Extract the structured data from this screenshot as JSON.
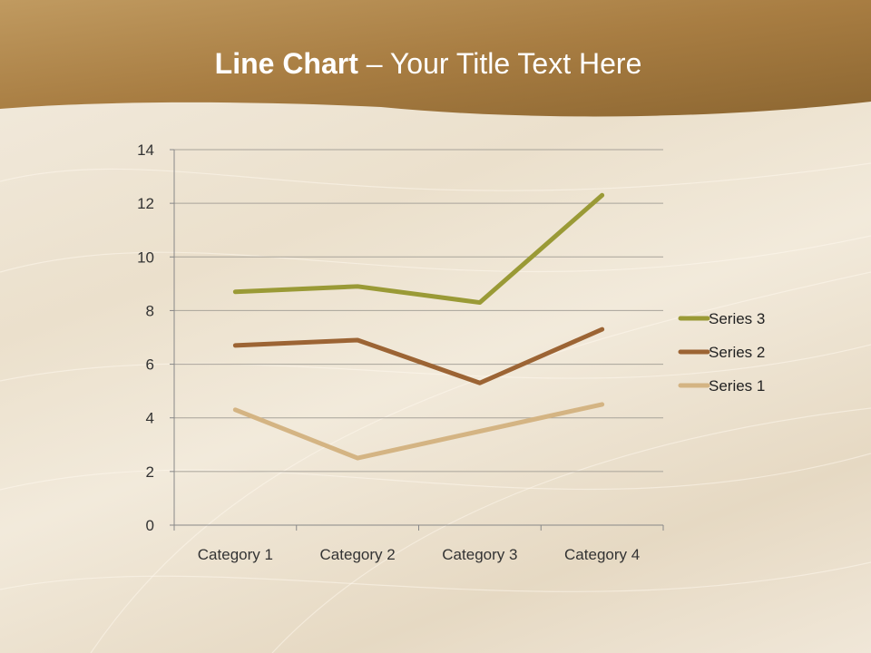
{
  "slide": {
    "title_bold": "Line Chart",
    "title_rest": " – Your Title Text Here"
  },
  "chart_data": {
    "type": "line",
    "title": "",
    "xlabel": "",
    "ylabel": "",
    "categories": [
      "Category 1",
      "Category 2",
      "Category 3",
      "Category 4"
    ],
    "ylim": [
      0,
      14
    ],
    "yticks": [
      "0",
      "2",
      "4",
      "6",
      "8",
      "10",
      "12",
      "14"
    ],
    "grid": true,
    "legend_position": "right",
    "series": [
      {
        "name": "Series 1",
        "values": [
          4.3,
          2.5,
          3.5,
          4.5
        ],
        "color": "#d4b483"
      },
      {
        "name": "Series 2",
        "values": [
          6.7,
          6.9,
          5.3,
          7.3
        ],
        "color": "#9c6434"
      },
      {
        "name": "Series 3",
        "values": [
          8.7,
          8.9,
          8.3,
          12.3
        ],
        "color": "#9a9a36"
      }
    ]
  }
}
